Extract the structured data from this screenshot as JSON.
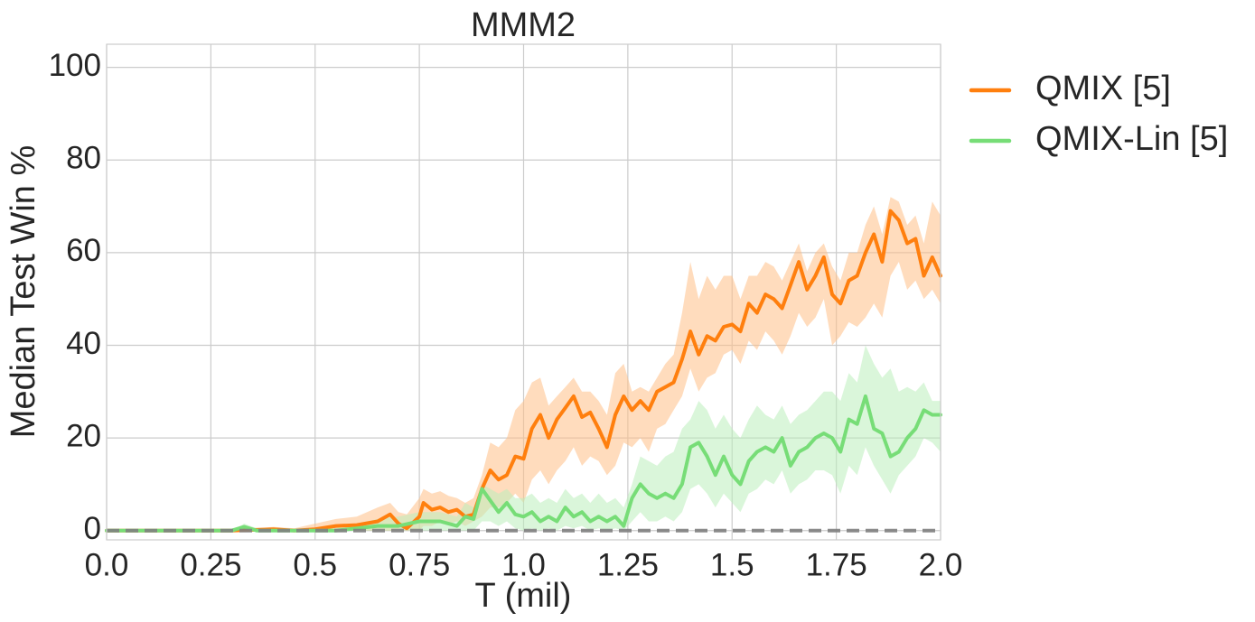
{
  "chart_data": {
    "type": "line",
    "title": "MMM2",
    "xlabel": "T (mil)",
    "ylabel": "Median Test Win %",
    "xlim": [
      0,
      2.0
    ],
    "ylim": [
      -2,
      105
    ],
    "xticks": [
      0.0,
      0.25,
      0.5,
      0.75,
      1.0,
      1.25,
      1.5,
      1.75,
      2.0
    ],
    "xtick_labels": [
      "0.0",
      "0.25",
      "0.5",
      "0.75",
      "1.0",
      "1.25",
      "1.5",
      "1.75",
      "2.0"
    ],
    "yticks": [
      0,
      20,
      40,
      60,
      80,
      100
    ],
    "ytick_labels": [
      "0",
      "20",
      "40",
      "60",
      "80",
      "100"
    ],
    "grid": true,
    "legend_position": "outside-top-right",
    "baseline": {
      "y": 0,
      "color": "#7f7f7f",
      "style": "dashed"
    },
    "series": [
      {
        "name": "QMIX [5]",
        "color": "#ff7f0e",
        "band_color": "#ffbf86",
        "x": [
          0,
          0.1,
          0.2,
          0.3,
          0.4,
          0.45,
          0.5,
          0.55,
          0.6,
          0.65,
          0.68,
          0.7,
          0.72,
          0.75,
          0.76,
          0.78,
          0.8,
          0.82,
          0.84,
          0.86,
          0.88,
          0.9,
          0.92,
          0.94,
          0.96,
          0.98,
          1.0,
          1.02,
          1.04,
          1.06,
          1.08,
          1.1,
          1.12,
          1.14,
          1.16,
          1.18,
          1.2,
          1.22,
          1.24,
          1.26,
          1.28,
          1.3,
          1.32,
          1.34,
          1.36,
          1.38,
          1.4,
          1.42,
          1.44,
          1.46,
          1.48,
          1.5,
          1.52,
          1.54,
          1.56,
          1.58,
          1.6,
          1.62,
          1.64,
          1.66,
          1.68,
          1.7,
          1.72,
          1.74,
          1.76,
          1.78,
          1.8,
          1.82,
          1.84,
          1.86,
          1.88,
          1.9,
          1.92,
          1.94,
          1.96,
          1.98,
          2.0
        ],
        "median": [
          0,
          0,
          0,
          0,
          0.3,
          0,
          0.3,
          1.0,
          1.2,
          2.0,
          3.5,
          1.5,
          0.5,
          3.0,
          6.0,
          4.5,
          5.0,
          4.0,
          4.5,
          3.0,
          3.5,
          9.0,
          13.0,
          11.0,
          12.0,
          16.0,
          15.5,
          22.0,
          25.0,
          20.0,
          24.0,
          26.5,
          29.0,
          24.5,
          25.5,
          22.0,
          18.0,
          25.0,
          29.0,
          26.0,
          28.0,
          26.0,
          30.0,
          31.0,
          32.0,
          37.0,
          43.0,
          38.0,
          42.0,
          41.0,
          44.0,
          44.5,
          43.0,
          49.0,
          47.0,
          51.0,
          50.0,
          48.0,
          53.0,
          58.0,
          52.0,
          55.0,
          59.0,
          51.0,
          49.0,
          54.0,
          55.0,
          60.0,
          64.0,
          58.0,
          69.0,
          67.0,
          62.0,
          63.0,
          55.0,
          59.0,
          55.0
        ],
        "lower": [
          0,
          0,
          0,
          0,
          0,
          0,
          0,
          0,
          0,
          0,
          0,
          0,
          0,
          0,
          1.0,
          1.0,
          2.0,
          1.5,
          2.0,
          1.0,
          2.0,
          3.0,
          5.0,
          5.0,
          6.0,
          8.0,
          6.0,
          11.0,
          13.0,
          10.0,
          13.0,
          15.0,
          18.0,
          14.0,
          16.0,
          15.0,
          12.0,
          14.0,
          19.0,
          18.0,
          20.0,
          17.0,
          22.0,
          23.0,
          26.0,
          29.0,
          35.0,
          30.0,
          33.0,
          34.0,
          38.0,
          39.0,
          36.0,
          41.0,
          39.0,
          43.0,
          41.0,
          38.0,
          42.0,
          47.0,
          44.0,
          46.0,
          50.0,
          40.0,
          42.0,
          45.0,
          44.0,
          46.0,
          49.0,
          46.0,
          55.0,
          58.0,
          52.0,
          54.0,
          50.0,
          52.0,
          49.0
        ],
        "upper": [
          0,
          0,
          0,
          0,
          0.8,
          0.5,
          1.5,
          2.5,
          3.0,
          5.0,
          6.0,
          4.0,
          3.5,
          7.0,
          9.0,
          8.0,
          8.5,
          7.5,
          7.0,
          6.0,
          7.0,
          12.0,
          19.0,
          18.0,
          20.0,
          26.0,
          28.0,
          32.0,
          33.0,
          27.0,
          29.0,
          31.0,
          33.0,
          30.0,
          30.0,
          28.0,
          25.0,
          34.0,
          36.0,
          30.0,
          31.0,
          30.0,
          33.0,
          36.0,
          38.0,
          47.0,
          58.0,
          50.0,
          55.0,
          52.0,
          55.0,
          55.0,
          50.0,
          55.0,
          55.0,
          58.0,
          57.0,
          54.0,
          58.0,
          62.0,
          56.0,
          60.0,
          62.0,
          57.0,
          54.0,
          60.0,
          60.0,
          66.0,
          70.0,
          64.0,
          72.0,
          71.0,
          66.0,
          68.0,
          62.0,
          71.0,
          68.0
        ]
      },
      {
        "name": "QMIX-Lin [5]",
        "color": "#77dd77",
        "band_color": "#bbeebb",
        "x": [
          0,
          0.1,
          0.2,
          0.3,
          0.33,
          0.36,
          0.4,
          0.45,
          0.5,
          0.55,
          0.6,
          0.65,
          0.7,
          0.75,
          0.8,
          0.84,
          0.86,
          0.88,
          0.9,
          0.92,
          0.94,
          0.96,
          0.98,
          1.0,
          1.02,
          1.04,
          1.06,
          1.08,
          1.1,
          1.12,
          1.14,
          1.16,
          1.18,
          1.2,
          1.22,
          1.24,
          1.26,
          1.28,
          1.3,
          1.32,
          1.34,
          1.36,
          1.38,
          1.4,
          1.42,
          1.44,
          1.46,
          1.48,
          1.5,
          1.52,
          1.54,
          1.56,
          1.58,
          1.6,
          1.62,
          1.64,
          1.66,
          1.68,
          1.7,
          1.72,
          1.74,
          1.76,
          1.78,
          1.8,
          1.82,
          1.84,
          1.86,
          1.88,
          1.9,
          1.92,
          1.94,
          1.96,
          1.98,
          2.0
        ],
        "median": [
          0,
          0,
          0,
          0,
          0.8,
          0,
          0,
          0,
          0,
          0,
          0.5,
          1.0,
          1.0,
          2.0,
          2.0,
          1.0,
          3.0,
          2.5,
          9.0,
          6.5,
          4.0,
          6.0,
          3.5,
          3.0,
          4.0,
          2.0,
          3.0,
          2.0,
          5.0,
          3.0,
          4.0,
          2.0,
          3.0,
          2.0,
          3.0,
          1.0,
          7.0,
          10.0,
          8.0,
          7.0,
          8.0,
          7.0,
          10.0,
          18.0,
          19.0,
          16.0,
          12.0,
          16.0,
          12.0,
          10.0,
          15.0,
          17.0,
          18.0,
          17.0,
          20.0,
          14.0,
          17.0,
          18.0,
          20.0,
          21.0,
          20.0,
          17.0,
          24.0,
          23.0,
          29.0,
          22.0,
          21.0,
          16.0,
          17.0,
          20.0,
          22.0,
          26.0,
          25.0,
          25.0
        ],
        "lower": [
          0,
          0,
          0,
          0,
          0,
          0,
          0,
          0,
          0,
          0,
          0,
          0,
          0,
          0,
          0,
          0,
          0,
          0,
          2.0,
          2.0,
          1.0,
          2.0,
          0.5,
          0,
          0.5,
          0,
          0.5,
          0,
          1.0,
          0.5,
          1.0,
          0,
          0.5,
          0,
          0.5,
          0,
          2.0,
          4.0,
          2.0,
          2.0,
          3.0,
          2.0,
          4.0,
          9.0,
          10.0,
          8.0,
          5.0,
          8.0,
          6.0,
          4.0,
          8.0,
          9.0,
          11.0,
          10.0,
          13.0,
          8.0,
          10.0,
          11.0,
          13.0,
          13.0,
          12.0,
          8.0,
          14.0,
          12.0,
          18.0,
          14.0,
          11.0,
          8.0,
          12.0,
          14.0,
          16.0,
          20.0,
          19.0,
          17.0
        ],
        "upper": [
          0,
          0,
          0,
          0,
          1.5,
          0.5,
          0.3,
          0.3,
          0.3,
          0.5,
          1.5,
          2.5,
          3.0,
          4.0,
          4.0,
          3.0,
          6.0,
          5.0,
          10.0,
          9.0,
          8.0,
          9.0,
          7.0,
          7.0,
          8.0,
          6.0,
          7.0,
          6.0,
          9.0,
          7.0,
          8.0,
          6.0,
          8.0,
          6.0,
          7.0,
          5.0,
          10.0,
          16.0,
          15.0,
          14.0,
          16.0,
          17.0,
          22.0,
          24.0,
          28.0,
          26.0,
          22.0,
          25.0,
          22.0,
          20.0,
          24.0,
          27.0,
          25.0,
          24.0,
          27.0,
          23.0,
          25.0,
          26.0,
          28.0,
          30.0,
          30.0,
          28.0,
          34.0,
          32.0,
          40.0,
          36.0,
          33.0,
          35.0,
          30.0,
          31.0,
          30.0,
          32.0,
          28.0,
          28.0
        ]
      }
    ]
  }
}
